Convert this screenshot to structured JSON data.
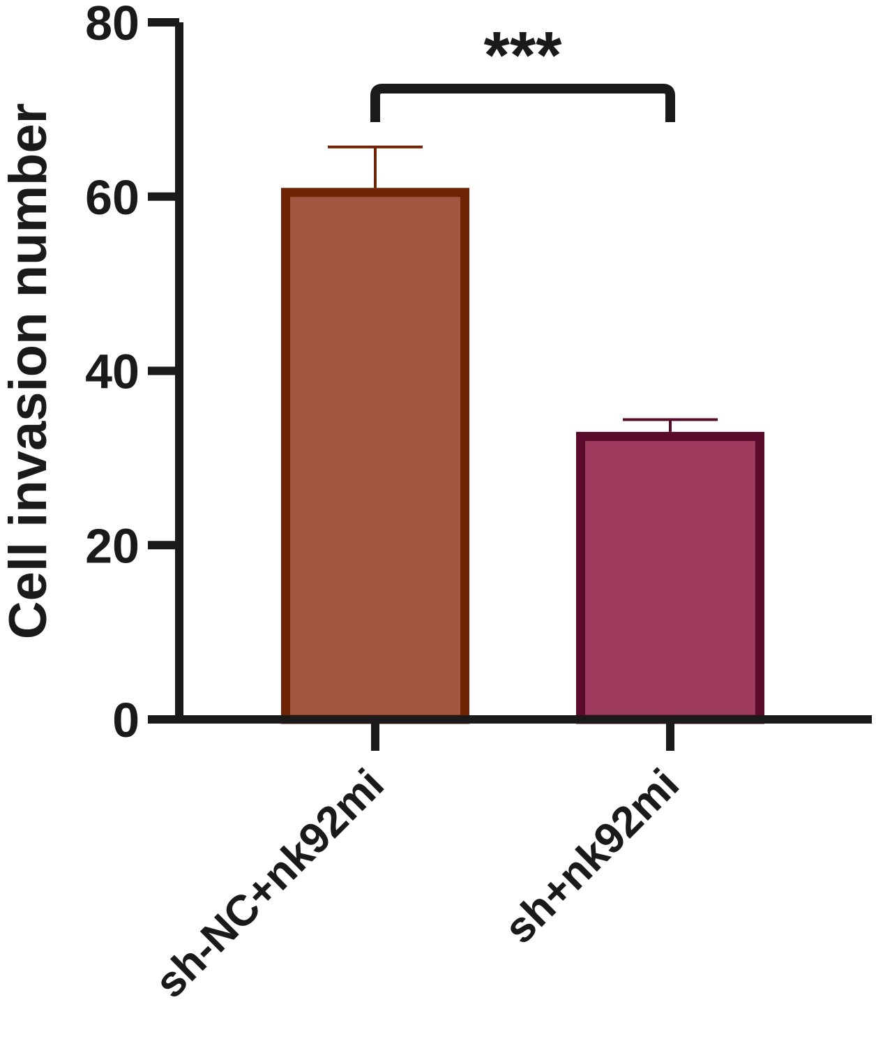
{
  "chart_data": {
    "type": "bar",
    "title": "",
    "xlabel": "",
    "ylabel": "Cell invasion number",
    "ylim": [
      0,
      80
    ],
    "yticks": [
      0,
      20,
      40,
      60,
      80
    ],
    "grid": false,
    "categories": [
      "sh-NC+nk92mi",
      "sh+nk92mi"
    ],
    "values": [
      61,
      33
    ],
    "error_upper": [
      65.7,
      34.4
    ],
    "bar_fills": [
      "#A4553F",
      "#9D3A5E"
    ],
    "bar_edges": [
      "#6E2405",
      "#5A0A2A"
    ],
    "axis_color": "#1a1a1a",
    "significance": {
      "between": [
        0,
        1
      ],
      "label": "***"
    }
  }
}
